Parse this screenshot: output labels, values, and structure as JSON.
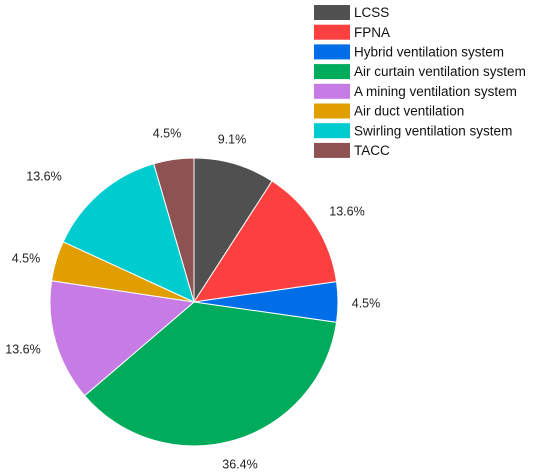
{
  "chart_data": {
    "type": "pie",
    "start_angle_deg": 90,
    "direction": "clockwise",
    "legend_position": "top-right",
    "series": [
      {
        "name": "LCSS",
        "value": 9.1,
        "label": "9.1%",
        "color": "#505050"
      },
      {
        "name": "FPNA",
        "value": 13.6,
        "label": "13.6%",
        "color": "#fc4040"
      },
      {
        "name": "Hybrid ventilation system",
        "value": 4.5,
        "label": "4.5%",
        "color": "#006ee6"
      },
      {
        "name": "Air curtain ventilation system",
        "value": 36.4,
        "label": "36.4%",
        "color": "#00ab5c"
      },
      {
        "name": "A mining ventilation system",
        "value": 13.6,
        "label": "13.6%",
        "color": "#c77be4"
      },
      {
        "name": "Air duct ventilation",
        "value": 4.5,
        "label": "4.5%",
        "color": "#e09e00"
      },
      {
        "name": "Swirling ventilation system",
        "value": 13.6,
        "label": "13.6%",
        "color": "#00cbcf"
      },
      {
        "name": "TACC",
        "value": 4.5,
        "label": "4.5%",
        "color": "#8f5252"
      }
    ]
  }
}
